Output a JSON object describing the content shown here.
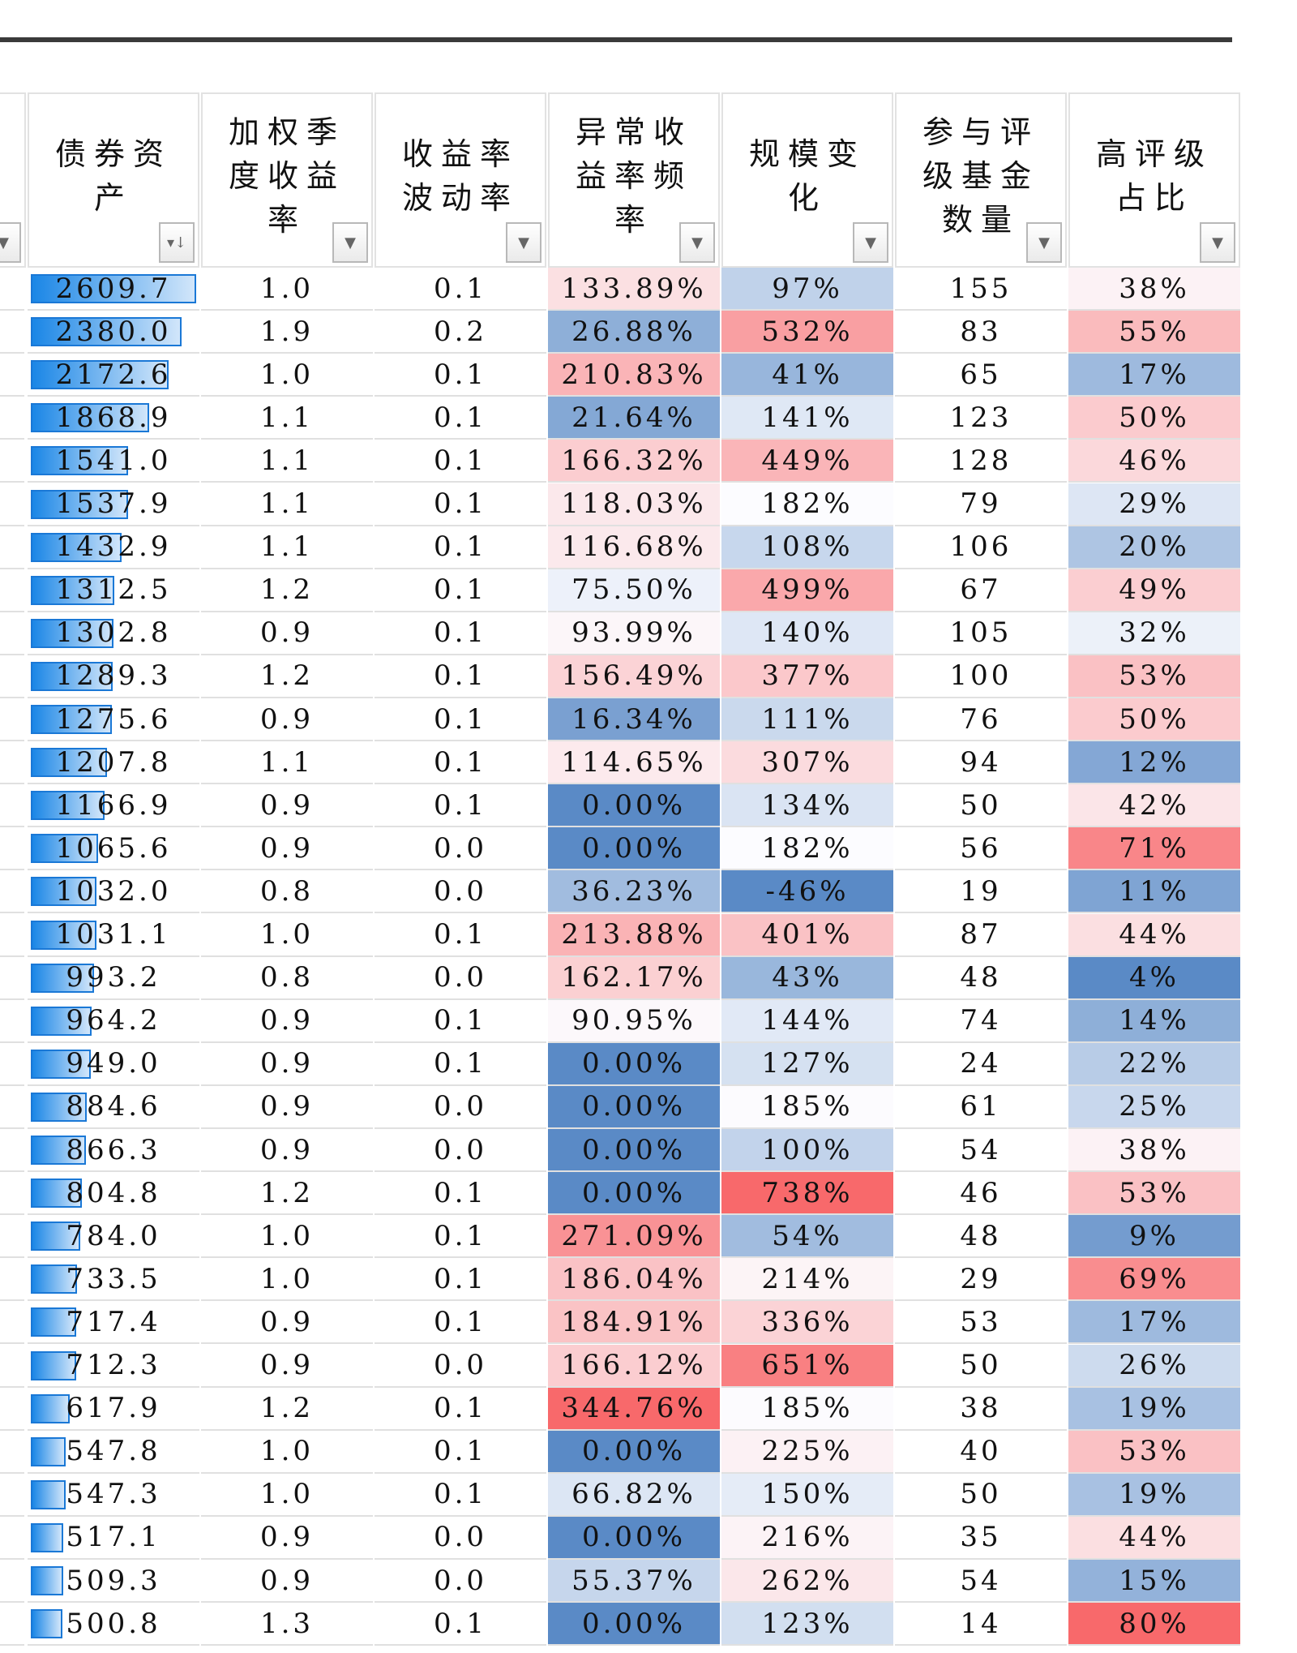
{
  "headers": [
    "债券资\n产",
    "加权季\n度收益\n率",
    "收益率\n波动率",
    "异常收\n益率频\n率",
    "规模变\n化",
    "参与评\n级基金\n数量",
    "高评级\n占比"
  ],
  "heat_colors": {
    "low": "#5a8ac6",
    "mid": "#fcfcff",
    "high": "#f8696b"
  },
  "bar_color": "#1a86e6",
  "rows": [
    [
      "2609.7",
      "1.0",
      "0.1",
      "133.89%",
      "97%",
      "155",
      "38%"
    ],
    [
      "2380.0",
      "1.9",
      "0.2",
      "26.88%",
      "532%",
      "83",
      "55%"
    ],
    [
      "2172.6",
      "1.0",
      "0.1",
      "210.83%",
      "41%",
      "65",
      "17%"
    ],
    [
      "1868.9",
      "1.1",
      "0.1",
      "21.64%",
      "141%",
      "123",
      "50%"
    ],
    [
      "1541.0",
      "1.1",
      "0.1",
      "166.32%",
      "449%",
      "128",
      "46%"
    ],
    [
      "1537.9",
      "1.1",
      "0.1",
      "118.03%",
      "182%",
      "79",
      "29%"
    ],
    [
      "1432.9",
      "1.1",
      "0.1",
      "116.68%",
      "108%",
      "106",
      "20%"
    ],
    [
      "1312.5",
      "1.2",
      "0.1",
      "75.50%",
      "499%",
      "67",
      "49%"
    ],
    [
      "1302.8",
      "0.9",
      "0.1",
      "93.99%",
      "140%",
      "105",
      "32%"
    ],
    [
      "1289.3",
      "1.2",
      "0.1",
      "156.49%",
      "377%",
      "100",
      "53%"
    ],
    [
      "1275.6",
      "0.9",
      "0.1",
      "16.34%",
      "111%",
      "76",
      "50%"
    ],
    [
      "1207.8",
      "1.1",
      "0.1",
      "114.65%",
      "307%",
      "94",
      "12%"
    ],
    [
      "1166.9",
      "0.9",
      "0.1",
      "0.00%",
      "134%",
      "50",
      "42%"
    ],
    [
      "1065.6",
      "0.9",
      "0.0",
      "0.00%",
      "182%",
      "56",
      "71%"
    ],
    [
      "1032.0",
      "0.8",
      "0.0",
      "36.23%",
      "-46%",
      "19",
      "11%"
    ],
    [
      "1031.1",
      "1.0",
      "0.1",
      "213.88%",
      "401%",
      "87",
      "44%"
    ],
    [
      "993.2",
      "0.8",
      "0.0",
      "162.17%",
      "43%",
      "48",
      "4%"
    ],
    [
      "964.2",
      "0.9",
      "0.1",
      "90.95%",
      "144%",
      "74",
      "14%"
    ],
    [
      "949.0",
      "0.9",
      "0.1",
      "0.00%",
      "127%",
      "24",
      "22%"
    ],
    [
      "884.6",
      "0.9",
      "0.0",
      "0.00%",
      "185%",
      "61",
      "25%"
    ],
    [
      "866.3",
      "0.9",
      "0.0",
      "0.00%",
      "100%",
      "54",
      "38%"
    ],
    [
      "804.8",
      "1.2",
      "0.1",
      "0.00%",
      "738%",
      "46",
      "53%"
    ],
    [
      "784.0",
      "1.0",
      "0.1",
      "271.09%",
      "54%",
      "48",
      "9%"
    ],
    [
      "733.5",
      "1.0",
      "0.1",
      "186.04%",
      "214%",
      "29",
      "69%"
    ],
    [
      "717.4",
      "0.9",
      "0.1",
      "184.91%",
      "336%",
      "53",
      "17%"
    ],
    [
      "712.3",
      "0.9",
      "0.0",
      "166.12%",
      "651%",
      "50",
      "26%"
    ],
    [
      "617.9",
      "1.2",
      "0.1",
      "344.76%",
      "185%",
      "38",
      "19%"
    ],
    [
      "547.8",
      "1.0",
      "0.1",
      "0.00%",
      "225%",
      "40",
      "53%"
    ],
    [
      "547.3",
      "1.0",
      "0.1",
      "66.82%",
      "150%",
      "50",
      "19%"
    ],
    [
      "517.1",
      "0.9",
      "0.0",
      "0.00%",
      "216%",
      "35",
      "44%"
    ],
    [
      "509.3",
      "0.9",
      "0.0",
      "55.37%",
      "262%",
      "54",
      "15%"
    ],
    [
      "500.8",
      "1.3",
      "0.1",
      "0.00%",
      "123%",
      "14",
      "80%"
    ]
  ]
}
